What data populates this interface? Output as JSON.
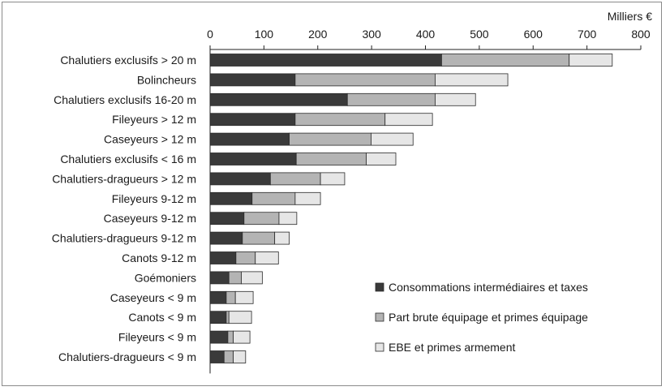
{
  "chart_data": {
    "type": "bar",
    "orientation": "horizontal",
    "stacked": true,
    "unit_label": "Milliers €",
    "xlim": [
      0,
      800
    ],
    "ticks": [
      0,
      100,
      200,
      300,
      400,
      500,
      600,
      700,
      800
    ],
    "grid": false,
    "legend_position": "bottom-right",
    "categories": [
      "Chalutiers exclusifs > 20 m",
      "Bolincheurs",
      "Chalutiers exclusifs 16-20 m",
      "Fileyeurs > 12 m",
      "Caseyeurs > 12 m",
      "Chalutiers exclusifs < 16 m",
      "Chalutiers-dragueurs > 12 m",
      "Fileyeurs 9-12 m",
      "Caseyeurs 9-12 m",
      "Chalutiers-dragueurs 9-12 m",
      "Canots 9-12 m",
      "Goémoniers",
      "Caseyeurs < 9 m",
      "Canots < 9 m",
      "Fileyeurs < 9 m",
      "Chalutiers-dragueurs < 9 m"
    ],
    "series": [
      {
        "name": "Consommations intermédiaires et taxes",
        "color": "#3a3a3a",
        "values": [
          430,
          158,
          255,
          158,
          147,
          160,
          112,
          78,
          63,
          60,
          48,
          35,
          30,
          30,
          33,
          26
        ]
      },
      {
        "name": "Part brute équipage et primes équipage",
        "color": "#b4b4b4",
        "values": [
          237,
          260,
          163,
          167,
          152,
          130,
          93,
          80,
          65,
          60,
          36,
          23,
          17,
          5,
          10,
          17
        ]
      },
      {
        "name": "EBE et primes armement",
        "color": "#e6e6e6",
        "values": [
          80,
          135,
          75,
          88,
          78,
          55,
          45,
          47,
          33,
          27,
          43,
          39,
          33,
          42,
          31,
          23
        ]
      }
    ]
  }
}
